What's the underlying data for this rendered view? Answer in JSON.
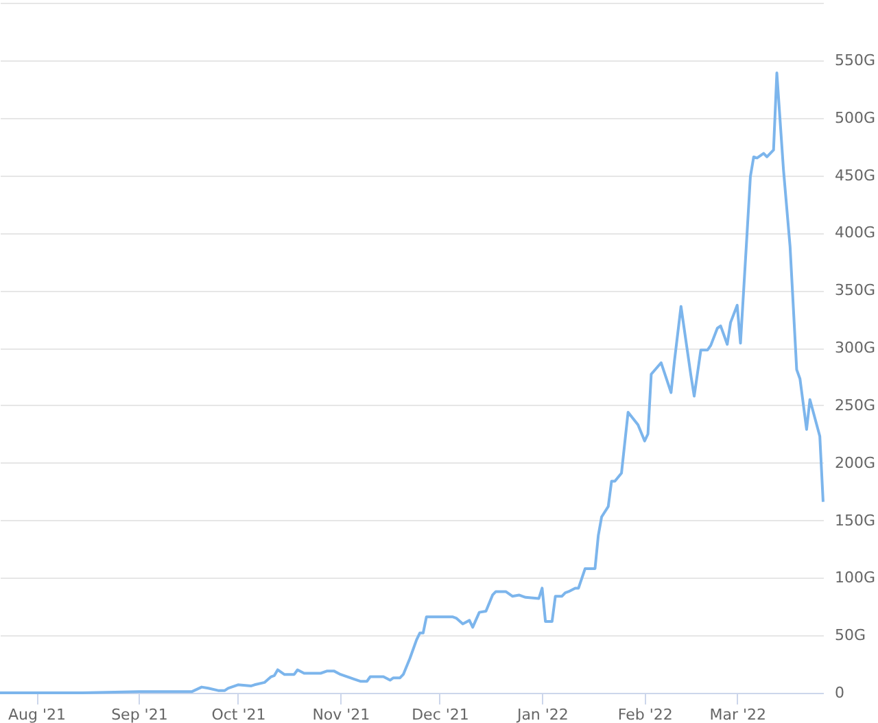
{
  "chart_data": {
    "type": "line",
    "grid": "y",
    "marker": "none",
    "line_style": "solid",
    "xlim": [
      "2021-07-21",
      "2022-03-27"
    ],
    "xticks": [
      {
        "value": "2021-08-01",
        "label": "Aug '21"
      },
      {
        "value": "2021-09-01",
        "label": "Sep '21"
      },
      {
        "value": "2021-10-01",
        "label": "Oct '21"
      },
      {
        "value": "2021-11-01",
        "label": "Nov '21"
      },
      {
        "value": "2021-12-01",
        "label": "Dec '21"
      },
      {
        "value": "2022-01-01",
        "label": "Jan '22"
      },
      {
        "value": "2022-02-01",
        "label": "Feb '22"
      },
      {
        "value": "2022-03-01",
        "label": "Mar '22"
      }
    ],
    "ylim": [
      0,
      600
    ],
    "yticks": [
      {
        "value": 0,
        "label": "0"
      },
      {
        "value": 50,
        "label": "50G"
      },
      {
        "value": 100,
        "label": "100G"
      },
      {
        "value": 150,
        "label": "150G"
      },
      {
        "value": 200,
        "label": "200G"
      },
      {
        "value": 250,
        "label": "250G"
      },
      {
        "value": 300,
        "label": "300G"
      },
      {
        "value": 350,
        "label": "350G"
      },
      {
        "value": 400,
        "label": "400G"
      },
      {
        "value": 450,
        "label": "450G"
      },
      {
        "value": 500,
        "label": "500G"
      },
      {
        "value": 550,
        "label": "550G"
      },
      {
        "value": 600,
        "label": null
      }
    ],
    "x": [
      "2021-07-21",
      "2021-08-15",
      "2021-09-01",
      "2021-09-13",
      "2021-09-17",
      "2021-09-20",
      "2021-09-22",
      "2021-09-25",
      "2021-09-27",
      "2021-09-28",
      "2021-10-01",
      "2021-10-05",
      "2021-10-06",
      "2021-10-09",
      "2021-10-11",
      "2021-10-12",
      "2021-10-13",
      "2021-10-15",
      "2021-10-18",
      "2021-10-19",
      "2021-10-21",
      "2021-10-26",
      "2021-10-28",
      "2021-10-30",
      "2021-11-01",
      "2021-11-05",
      "2021-11-07",
      "2021-11-09",
      "2021-11-10",
      "2021-11-14",
      "2021-11-16",
      "2021-11-17",
      "2021-11-19",
      "2021-11-20",
      "2021-11-22",
      "2021-11-24",
      "2021-11-25",
      "2021-11-26",
      "2021-11-27",
      "2021-12-05",
      "2021-12-06",
      "2021-12-08",
      "2021-12-10",
      "2021-12-11",
      "2021-12-13",
      "2021-12-15",
      "2021-12-17",
      "2021-12-18",
      "2021-12-21",
      "2021-12-23",
      "2021-12-25",
      "2021-12-27",
      "2021-12-31",
      "2022-01-01",
      "2022-01-02",
      "2022-01-04",
      "2022-01-05",
      "2022-01-07",
      "2022-01-08",
      "2022-01-09",
      "2022-01-11",
      "2022-01-12",
      "2022-01-14",
      "2022-01-17",
      "2022-01-18",
      "2022-01-19",
      "2022-01-21",
      "2022-01-22",
      "2022-01-23",
      "2022-01-25",
      "2022-01-27",
      "2022-01-30",
      "2022-02-01",
      "2022-02-02",
      "2022-02-03",
      "2022-02-06",
      "2022-02-09",
      "2022-02-10",
      "2022-02-12",
      "2022-02-15",
      "2022-02-16",
      "2022-02-18",
      "2022-02-20",
      "2022-02-21",
      "2022-02-23",
      "2022-02-24",
      "2022-02-26",
      "2022-02-27",
      "2022-03-01",
      "2022-03-02",
      "2022-03-04",
      "2022-03-05",
      "2022-03-06",
      "2022-03-07",
      "2022-03-09",
      "2022-03-10",
      "2022-03-12",
      "2022-03-13",
      "2022-03-15",
      "2022-03-17",
      "2022-03-19",
      "2022-03-20",
      "2022-03-22",
      "2022-03-23",
      "2022-03-26",
      "2022-03-27"
    ],
    "series": [
      {
        "color": "#7cb5ec",
        "values": [
          0,
          0,
          1,
          1,
          1,
          5,
          4,
          2,
          2,
          4,
          7,
          6,
          7,
          9,
          14,
          15,
          20,
          16,
          16,
          20,
          17,
          17,
          19,
          19,
          16,
          12,
          10,
          10,
          14,
          14,
          11,
          13,
          13,
          16,
          30,
          46,
          52,
          52,
          66,
          66,
          65,
          60,
          63,
          57,
          70,
          71,
          85,
          88,
          88,
          84,
          85,
          83,
          82,
          91,
          62,
          62,
          84,
          84,
          87,
          88,
          91,
          91,
          108,
          108,
          137,
          153,
          162,
          184,
          184,
          191,
          244,
          233,
          219,
          225,
          277,
          287,
          261,
          288,
          336,
          276,
          258,
          298,
          298,
          302,
          317,
          319,
          303,
          322,
          337,
          304,
          400,
          449,
          466,
          465,
          469,
          466,
          472,
          539,
          455,
          388,
          281,
          273,
          229,
          255,
          223,
          166
        ]
      }
    ]
  }
}
